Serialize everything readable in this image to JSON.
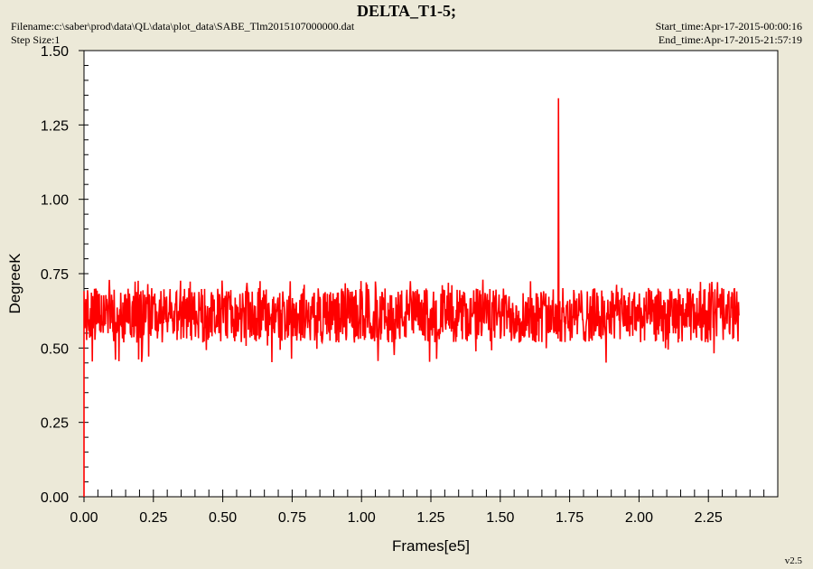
{
  "header": {
    "title": "DELTA_T1-5;",
    "filename": "Filename:c:\\saber\\prod\\data\\QL\\data\\plot_data\\SABE_Tlm2015107000000.dat",
    "step_size": "Step Size:1",
    "start_time": "Start_time:Apr-17-2015-00:00:16",
    "end_time": "End_time:Apr-17-2015-21:57:19",
    "version": "v2.5"
  },
  "colors": {
    "series": "#ff0000",
    "background": "#ece9d8",
    "plot_area": "#ffffff"
  },
  "chart_data": {
    "type": "line",
    "title": "DELTA_T1-5;",
    "xlabel": "Frames[e5]",
    "ylabel": "DegreeK",
    "xlim": [
      0,
      2.5
    ],
    "ylim": [
      0,
      1.5
    ],
    "x_ticks": [
      "0.00",
      "0.25",
      "0.50",
      "0.75",
      "1.00",
      "1.25",
      "1.50",
      "1.75",
      "2.00",
      "2.25"
    ],
    "y_ticks": [
      "0.00",
      "0.25",
      "0.50",
      "0.75",
      "1.00",
      "1.25",
      "1.50"
    ],
    "x_tick_values": [
      0,
      0.25,
      0.5,
      0.75,
      1.0,
      1.25,
      1.5,
      1.75,
      2.0,
      2.25
    ],
    "y_tick_values": [
      0,
      0.25,
      0.5,
      0.75,
      1.0,
      1.25,
      1.5
    ],
    "series": [
      {
        "x_start": 0.0,
        "x_end": 2.36,
        "typical_center": 0.61,
        "typical_min": 0.54,
        "typical_max": 0.7,
        "overall_min": 0.45,
        "overall_max": 0.73,
        "start_point": {
          "x": 0.0,
          "y": 0.0
        },
        "spike": {
          "x": 1.71,
          "y": 1.34
        }
      }
    ]
  }
}
